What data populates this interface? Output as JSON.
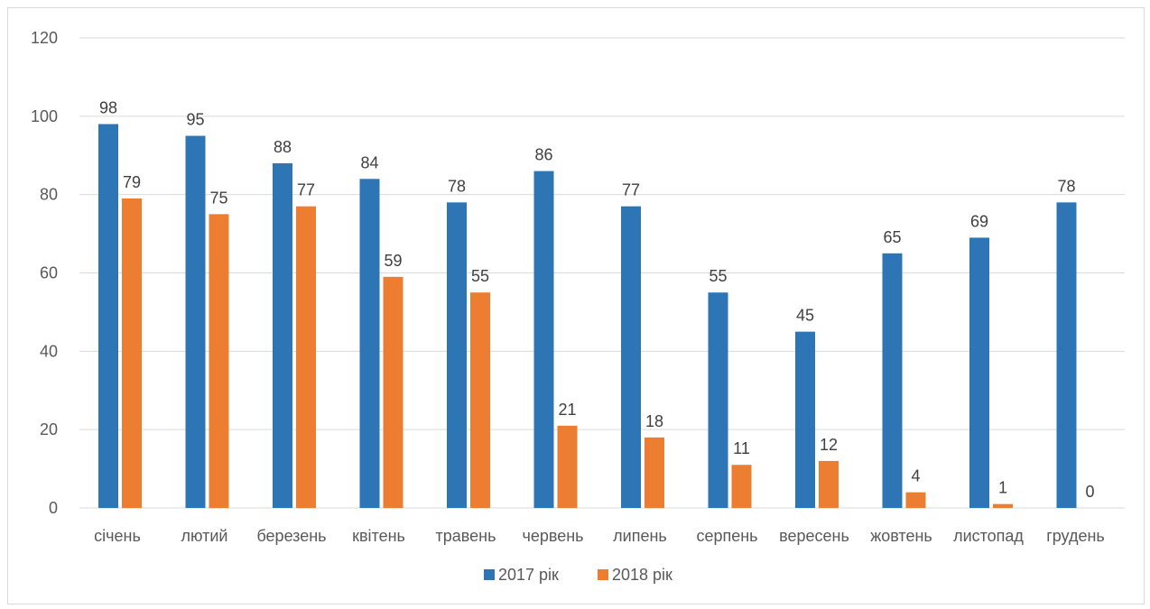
{
  "chart_data": {
    "type": "bar",
    "title": "",
    "xlabel": "",
    "ylabel": "",
    "categories": [
      "січень",
      "лютий",
      "березень",
      "квітень",
      "травень",
      "червень",
      "липень",
      "серпень",
      "вересень",
      "жовтень",
      "листопад",
      "грудень"
    ],
    "series": [
      {
        "name": "2017 рік",
        "color": "#2e75b6",
        "values": [
          98,
          95,
          88,
          84,
          78,
          86,
          77,
          55,
          45,
          65,
          69,
          78
        ]
      },
      {
        "name": "2018 рік",
        "color": "#ed7d31",
        "values": [
          79,
          75,
          77,
          59,
          55,
          21,
          18,
          11,
          12,
          4,
          1,
          0
        ]
      }
    ],
    "ylim": [
      0,
      120
    ],
    "yticks": [
      0,
      20,
      40,
      60,
      80,
      100,
      120
    ],
    "grid": true,
    "legend_position": "bottom"
  }
}
